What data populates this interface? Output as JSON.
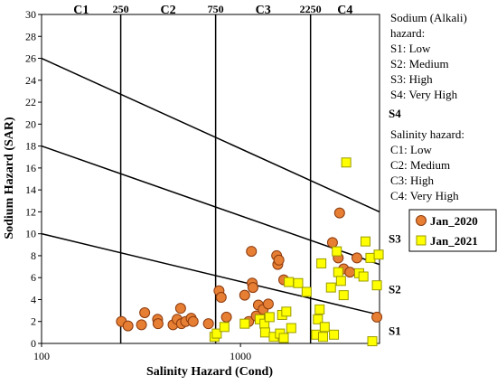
{
  "chart_data": {
    "type": "scatter",
    "xlabel": "Salinity Hazard (Cond)",
    "ylabel": "Sodium Hazard (SAR)",
    "x_scale": "log",
    "xlim": [
      100,
      5000
    ],
    "ylim": [
      0,
      30
    ],
    "x_ticks": [
      {
        "value": 100,
        "label": "100"
      },
      {
        "value": 1000,
        "label": "1000"
      }
    ],
    "y_ticks": [
      0,
      2,
      4,
      6,
      8,
      10,
      12,
      14,
      16,
      18,
      20,
      22,
      24,
      26,
      28,
      30
    ],
    "grid": false,
    "salinity_classes": [
      {
        "label": "C1",
        "from": 100,
        "to": 250
      },
      {
        "label": "C2",
        "from": 250,
        "to": 750
      },
      {
        "label": "C3",
        "from": 750,
        "to": 2250
      },
      {
        "label": "C4",
        "from": 2250,
        "to": 5000
      }
    ],
    "salinity_boundaries": [
      {
        "value": 250,
        "label": "250"
      },
      {
        "value": 750,
        "label": "750"
      },
      {
        "value": 2250,
        "label": "2250"
      }
    ],
    "sodium_boundaries": [
      {
        "y_at_xmin": 10,
        "y_at_xmax": 2.6
      },
      {
        "y_at_xmin": 18,
        "y_at_xmax": 7.2
      },
      {
        "y_at_xmin": 26,
        "y_at_xmax": 12
      }
    ],
    "sodium_zone_labels": [
      {
        "label": "S1",
        "y": 1.2
      },
      {
        "label": "S2",
        "y": 5
      },
      {
        "label": "S3",
        "y": 9.6
      },
      {
        "label": "S4",
        "y": 21
      }
    ],
    "legend": {
      "placement": "right"
    },
    "series": [
      {
        "name": "Jan_2020",
        "marker": "circle",
        "color": "#E67E33",
        "edge": "#8B3A0E",
        "points": [
          {
            "x": 252,
            "y": 2.0
          },
          {
            "x": 272,
            "y": 1.6
          },
          {
            "x": 318,
            "y": 1.7
          },
          {
            "x": 330,
            "y": 2.8
          },
          {
            "x": 383,
            "y": 2.2
          },
          {
            "x": 385,
            "y": 1.8
          },
          {
            "x": 458,
            "y": 1.7
          },
          {
            "x": 480,
            "y": 2.2
          },
          {
            "x": 500,
            "y": 3.2
          },
          {
            "x": 505,
            "y": 1.8
          },
          {
            "x": 530,
            "y": 2.0
          },
          {
            "x": 565,
            "y": 2.3
          },
          {
            "x": 578,
            "y": 2.0
          },
          {
            "x": 690,
            "y": 1.8
          },
          {
            "x": 780,
            "y": 4.8
          },
          {
            "x": 800,
            "y": 4.2
          },
          {
            "x": 850,
            "y": 2.4
          },
          {
            "x": 1050,
            "y": 4.4
          },
          {
            "x": 1100,
            "y": 2.0
          },
          {
            "x": 1135,
            "y": 8.4
          },
          {
            "x": 1145,
            "y": 5.5
          },
          {
            "x": 1155,
            "y": 5.1
          },
          {
            "x": 1200,
            "y": 2.5
          },
          {
            "x": 1230,
            "y": 3.5
          },
          {
            "x": 1300,
            "y": 3.1
          },
          {
            "x": 1380,
            "y": 3.6
          },
          {
            "x": 1520,
            "y": 8.0
          },
          {
            "x": 1540,
            "y": 7.2
          },
          {
            "x": 1560,
            "y": 7.6
          },
          {
            "x": 1650,
            "y": 5.8
          },
          {
            "x": 2900,
            "y": 9.2
          },
          {
            "x": 3100,
            "y": 7.8
          },
          {
            "x": 3150,
            "y": 11.9
          },
          {
            "x": 3300,
            "y": 6.8
          },
          {
            "x": 3550,
            "y": 6.5
          },
          {
            "x": 3850,
            "y": 7.8
          },
          {
            "x": 4850,
            "y": 2.4
          }
        ]
      },
      {
        "name": "Jan_2021",
        "marker": "square",
        "color": "#FFFF00",
        "edge": "#9A9A00",
        "points": [
          {
            "x": 740,
            "y": 0.6
          },
          {
            "x": 760,
            "y": 0.9
          },
          {
            "x": 830,
            "y": 1.5
          },
          {
            "x": 1050,
            "y": 1.8
          },
          {
            "x": 1250,
            "y": 2.2
          },
          {
            "x": 1320,
            "y": 1.8
          },
          {
            "x": 1330,
            "y": 1.0
          },
          {
            "x": 1400,
            "y": 2.4
          },
          {
            "x": 1470,
            "y": 0.6
          },
          {
            "x": 1580,
            "y": 0.9
          },
          {
            "x": 1620,
            "y": 2.6
          },
          {
            "x": 1650,
            "y": 0.5
          },
          {
            "x": 1700,
            "y": 2.9
          },
          {
            "x": 1750,
            "y": 5.6
          },
          {
            "x": 1800,
            "y": 1.4
          },
          {
            "x": 1950,
            "y": 5.5
          },
          {
            "x": 2150,
            "y": 4.7
          },
          {
            "x": 2400,
            "y": 0.8
          },
          {
            "x": 2450,
            "y": 2.2
          },
          {
            "x": 2500,
            "y": 3.1
          },
          {
            "x": 2550,
            "y": 7.3
          },
          {
            "x": 2600,
            "y": 0.6
          },
          {
            "x": 2650,
            "y": 1.5
          },
          {
            "x": 2850,
            "y": 5.1
          },
          {
            "x": 2950,
            "y": 0.8
          },
          {
            "x": 3050,
            "y": 8.4
          },
          {
            "x": 3100,
            "y": 6.5
          },
          {
            "x": 3200,
            "y": 5.7
          },
          {
            "x": 3300,
            "y": 4.4
          },
          {
            "x": 3400,
            "y": 16.5
          },
          {
            "x": 3950,
            "y": 6.4
          },
          {
            "x": 4150,
            "y": 6.1
          },
          {
            "x": 4250,
            "y": 9.3
          },
          {
            "x": 4500,
            "y": 7.8
          },
          {
            "x": 4600,
            "y": 0.2
          },
          {
            "x": 4850,
            "y": 5.3
          },
          {
            "x": 4950,
            "y": 8.1
          }
        ]
      }
    ]
  },
  "notes": {
    "sodium_title_line1": "Sodium (Alkali)",
    "sodium_title_line2": "hazard:",
    "sodium_items": [
      "S1: Low",
      "S2: Medium",
      "S3: High",
      "S4: Very High"
    ],
    "salinity_title": "Salinity hazard:",
    "salinity_items": [
      "C1: Low",
      "C2: Medium",
      "C3: High",
      "C4: Very High"
    ]
  }
}
